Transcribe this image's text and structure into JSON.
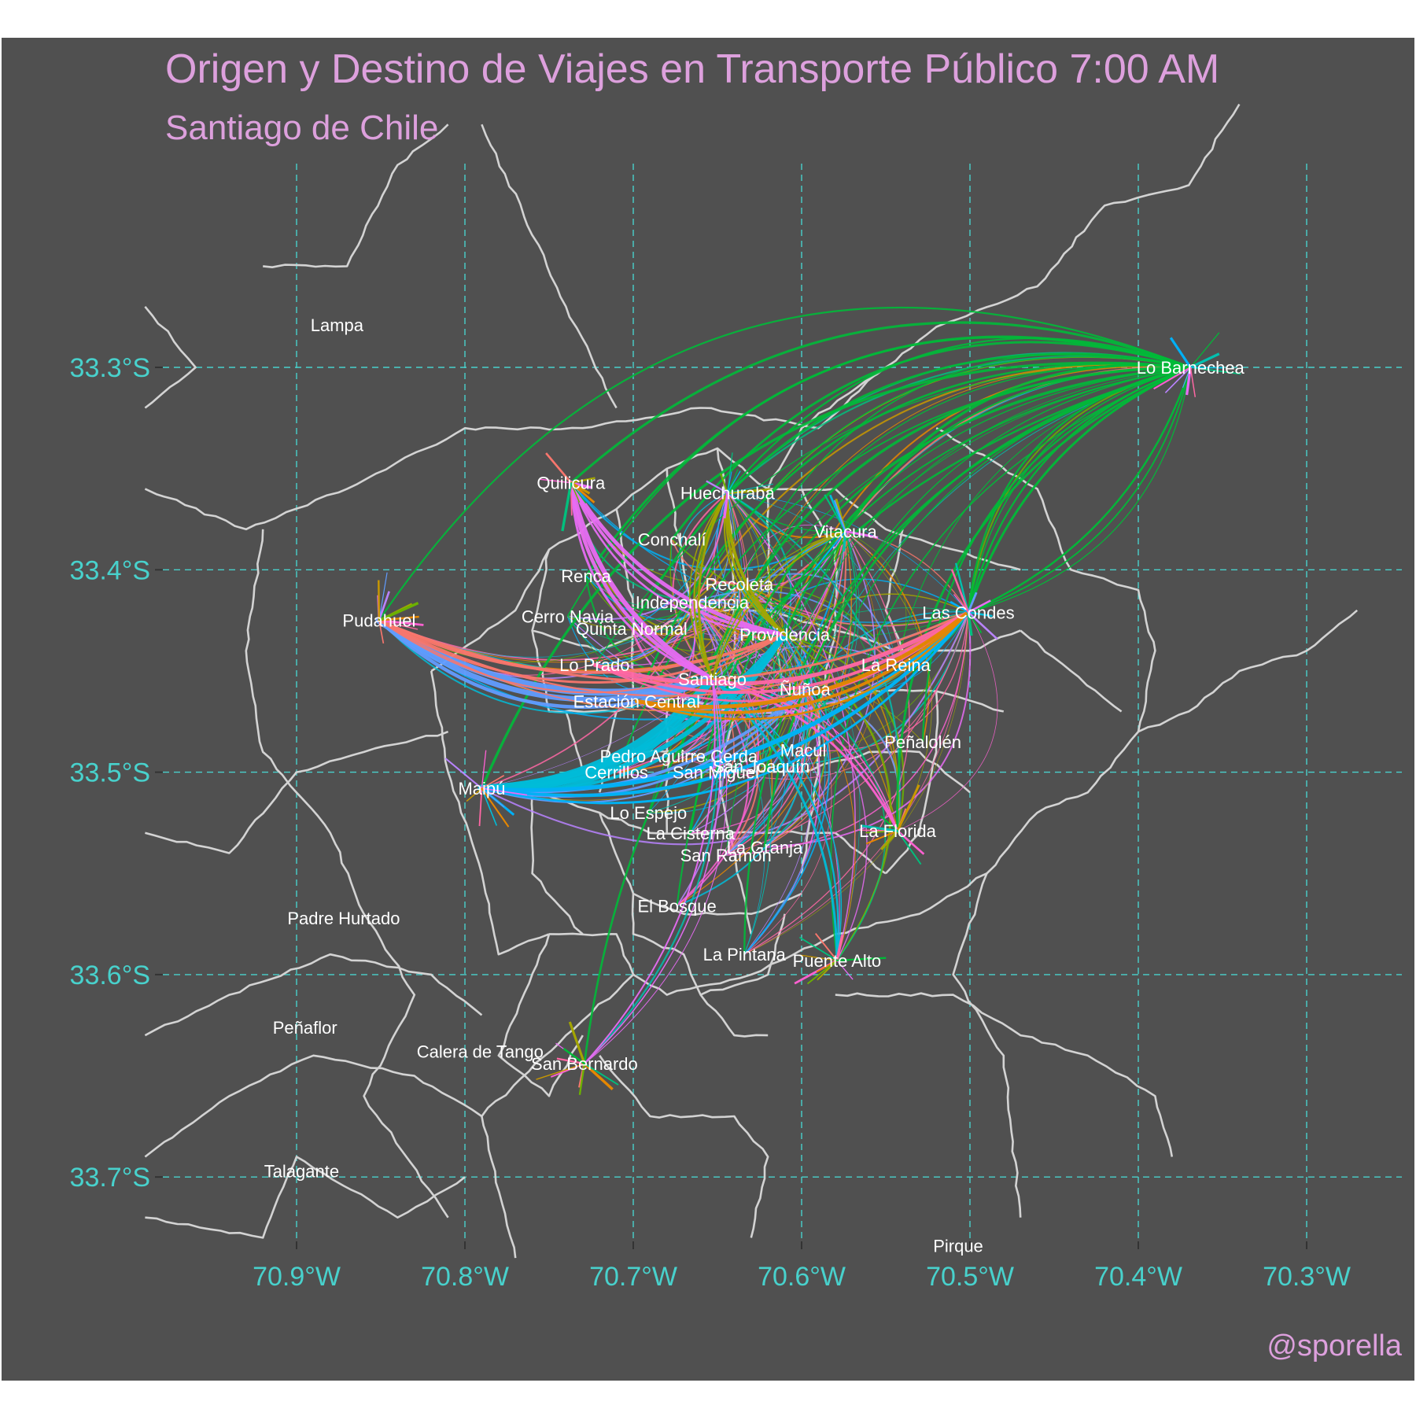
{
  "title": "Origen y Destino de Viajes en Transporte Público 7:00 AM",
  "subtitle": "Santiago de Chile",
  "caption": "@sporella",
  "colors": {
    "background": "#505050",
    "title": "#dda0dd",
    "axis_text": "#48d1cc",
    "grid": "#48d1cc",
    "borders": "#d3d3d3",
    "labels": "#ffffff"
  },
  "axes": {
    "lon_ticks": [
      "70.9°W",
      "70.8°W",
      "70.7°W",
      "70.6°W",
      "70.5°W",
      "70.4°W",
      "70.3°W"
    ],
    "lat_ticks": [
      "33.3°S",
      "33.4°S",
      "33.5°S",
      "33.6°S",
      "33.7°S"
    ],
    "lon_values": [
      -70.9,
      -70.8,
      -70.7,
      -70.6,
      -70.5,
      -70.4,
      -70.3
    ],
    "lat_values": [
      -33.3,
      -33.4,
      -33.5,
      -33.6,
      -33.7
    ],
    "grid": "dashed"
  },
  "comunas": [
    {
      "name": "Lampa",
      "lon": -70.876,
      "lat": -33.279
    },
    {
      "name": "Lo Barnechea",
      "lon": -70.369,
      "lat": -33.3
    },
    {
      "name": "Quilicura",
      "lon": -70.737,
      "lat": -33.357
    },
    {
      "name": "Huechuraba",
      "lon": -70.644,
      "lat": -33.362
    },
    {
      "name": "Vitacura",
      "lon": -70.574,
      "lat": -33.381
    },
    {
      "name": "Conchalí",
      "lon": -70.677,
      "lat": -33.385
    },
    {
      "name": "Renca",
      "lon": -70.728,
      "lat": -33.403
    },
    {
      "name": "Recoleta",
      "lon": -70.637,
      "lat": -33.407
    },
    {
      "name": "Independencia",
      "lon": -70.665,
      "lat": -33.416
    },
    {
      "name": "Pudahuel",
      "lon": -70.851,
      "lat": -33.425
    },
    {
      "name": "Cerro Navia",
      "lon": -70.739,
      "lat": -33.423
    },
    {
      "name": "Las Condes",
      "lon": -70.501,
      "lat": -33.421
    },
    {
      "name": "Quinta Normal",
      "lon": -70.701,
      "lat": -33.429
    },
    {
      "name": "Providencia",
      "lon": -70.61,
      "lat": -33.432
    },
    {
      "name": "Lo Prado",
      "lon": -70.723,
      "lat": -33.447
    },
    {
      "name": "La Reina",
      "lon": -70.544,
      "lat": -33.447
    },
    {
      "name": "Santiago",
      "lon": -70.653,
      "lat": -33.454
    },
    {
      "name": "Ñuñoa",
      "lon": -70.598,
      "lat": -33.459
    },
    {
      "name": "Estación Central",
      "lon": -70.698,
      "lat": -33.465
    },
    {
      "name": "Peñalolén",
      "lon": -70.528,
      "lat": -33.485
    },
    {
      "name": "Macul",
      "lon": -70.599,
      "lat": -33.489
    },
    {
      "name": "Pedro Aguirre Cerda",
      "lon": -70.673,
      "lat": -33.492
    },
    {
      "name": "San Joaquín",
      "lon": -70.624,
      "lat": -33.497
    },
    {
      "name": "Cerrillos",
      "lon": -70.71,
      "lat": -33.5
    },
    {
      "name": "San Miguel",
      "lon": -70.651,
      "lat": -33.5
    },
    {
      "name": "Maipú",
      "lon": -70.79,
      "lat": -33.508
    },
    {
      "name": "Lo Espejo",
      "lon": -70.691,
      "lat": -33.52
    },
    {
      "name": "La Florida",
      "lon": -70.543,
      "lat": -33.529
    },
    {
      "name": "La Cisterna",
      "lon": -70.666,
      "lat": -33.53
    },
    {
      "name": "La Granja",
      "lon": -70.622,
      "lat": -33.537
    },
    {
      "name": "San Ramón",
      "lon": -70.645,
      "lat": -33.541
    },
    {
      "name": "Padre Hurtado",
      "lon": -70.872,
      "lat": -33.572
    },
    {
      "name": "El Bosque",
      "lon": -70.674,
      "lat": -33.566
    },
    {
      "name": "La Pintana",
      "lon": -70.634,
      "lat": -33.59
    },
    {
      "name": "Puente Alto",
      "lon": -70.579,
      "lat": -33.593
    },
    {
      "name": "Peñaflor",
      "lon": -70.895,
      "lat": -33.626
    },
    {
      "name": "Calera de Tango",
      "lon": -70.791,
      "lat": -33.638
    },
    {
      "name": "San Bernardo",
      "lon": -70.729,
      "lat": -33.644
    },
    {
      "name": "Talagante",
      "lon": -70.897,
      "lat": -33.697
    },
    {
      "name": "Pirque",
      "lon": -70.507,
      "lat": -33.734
    }
  ]
}
